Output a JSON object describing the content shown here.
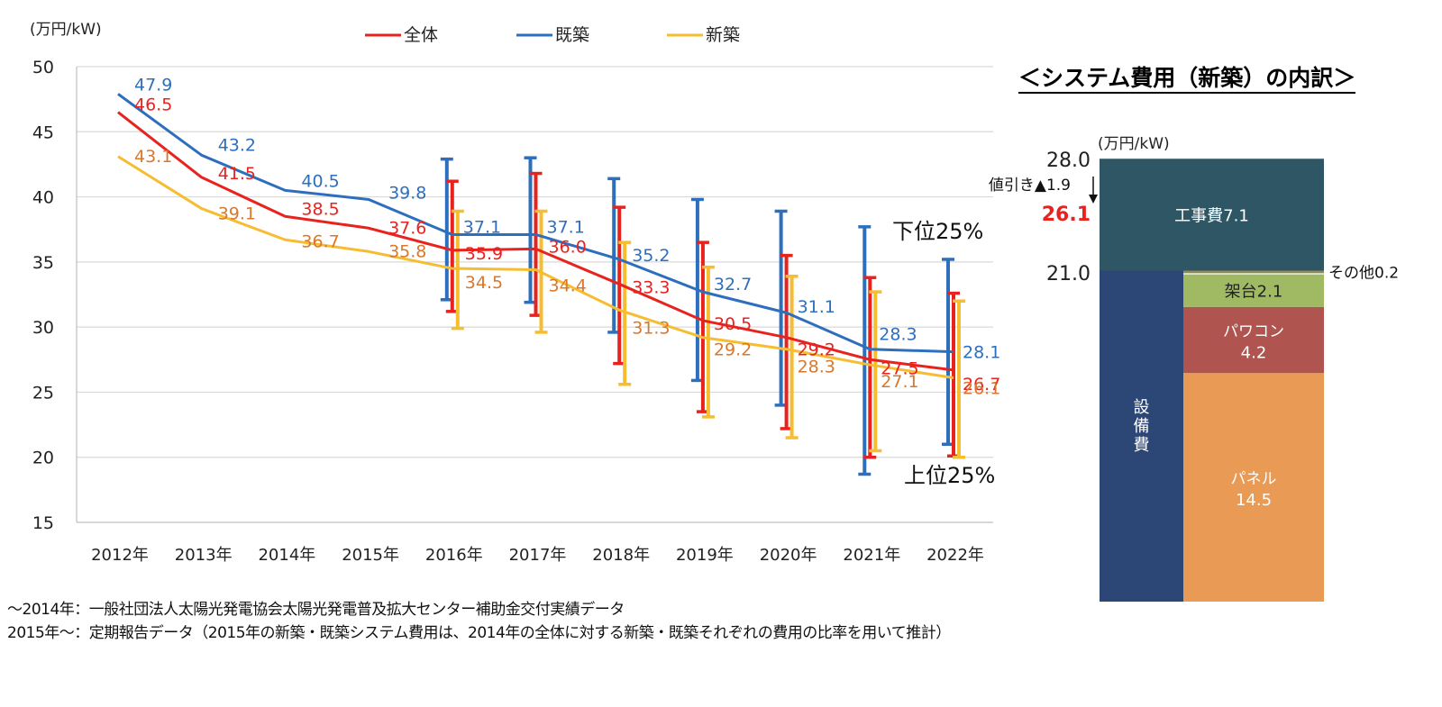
{
  "chart_data": [
    {
      "type": "line",
      "title": "",
      "ylabel": "(万円/kW)",
      "xlabel": "",
      "ylim": [
        15,
        50
      ],
      "yticks": [
        15,
        20,
        25,
        30,
        35,
        40,
        45,
        50
      ],
      "grid": true,
      "legend_position": "top",
      "categories": [
        "2012年",
        "2013年",
        "2014年",
        "2015年",
        "2016年",
        "2017年",
        "2018年",
        "2019年",
        "2020年",
        "2021年",
        "2022年"
      ],
      "series": [
        {
          "name": "全体",
          "color": "#e8231f",
          "label_color": "#e8231f",
          "values": [
            46.5,
            41.5,
            38.5,
            37.6,
            35.9,
            36.0,
            33.3,
            30.5,
            29.2,
            27.5,
            26.7
          ],
          "labels": [
            "46.5",
            "41.5",
            "38.5",
            "37.6",
            "35.9",
            "36.0",
            "33.3",
            "30.5",
            "29.2",
            "27.5",
            "26.7"
          ],
          "error_bars": [
            null,
            null,
            null,
            null,
            [
              31.2,
              41.2
            ],
            [
              30.9,
              41.8
            ],
            [
              27.2,
              39.2
            ],
            [
              23.5,
              36.5
            ],
            [
              22.2,
              35.5
            ],
            [
              20.0,
              33.8
            ],
            [
              20.1,
              32.6
            ]
          ]
        },
        {
          "name": "既築",
          "color": "#2e6fbd",
          "label_color": "#2e6fbd",
          "values": [
            47.9,
            43.2,
            40.5,
            39.8,
            37.1,
            37.1,
            35.2,
            32.7,
            31.1,
            28.3,
            28.1
          ],
          "labels": [
            "47.9",
            "43.2",
            "40.5",
            "39.8",
            "37.1",
            "37.1",
            "35.2",
            "32.7",
            "31.1",
            "28.3",
            "28.1"
          ],
          "error_bars": [
            null,
            null,
            null,
            null,
            [
              32.1,
              42.9
            ],
            [
              31.9,
              43.0
            ],
            [
              29.6,
              41.4
            ],
            [
              25.9,
              39.8
            ],
            [
              24.0,
              38.9
            ],
            [
              18.7,
              37.7
            ],
            [
              21.0,
              35.2
            ]
          ]
        },
        {
          "name": "新築",
          "color": "#f6bd30",
          "label_color": "#d9782d",
          "values": [
            43.1,
            39.1,
            36.7,
            35.8,
            34.5,
            34.4,
            31.3,
            29.2,
            28.3,
            27.1,
            26.1
          ],
          "labels": [
            "43.1",
            "39.1",
            "36.7",
            "35.8",
            "34.5",
            "34.4",
            "31.3",
            "29.2",
            "28.3",
            "27.1",
            "26.1"
          ],
          "error_bars": [
            null,
            null,
            null,
            null,
            [
              29.9,
              38.9
            ],
            [
              29.6,
              38.9
            ],
            [
              25.6,
              36.5
            ],
            [
              23.1,
              34.6
            ],
            [
              21.5,
              33.9
            ],
            [
              20.5,
              32.7
            ],
            [
              20.0,
              32.0
            ]
          ]
        }
      ],
      "annotations": {
        "lower_25": "下位25%",
        "upper_25": "上位25%"
      }
    },
    {
      "type": "bar",
      "stacked": true,
      "title": "＜システム費用（新築）の内訳＞",
      "ylabel": "(万円/kW)",
      "total_label": "28.0",
      "equipment_level_label": "21.0",
      "discount_label": "値引き▲1.9",
      "net_label": "26.1",
      "net_label_color": "#e8231f",
      "total": 28.0,
      "equipment_total": 21.0,
      "discount": 1.9,
      "net": 26.1,
      "equipment_group_label": "設備費",
      "equipment_group_color": "#2c4776",
      "segments": [
        {
          "name": "パネル",
          "value": 14.5,
          "label_line1": "パネル",
          "label_line2": "14.5",
          "color": "#e99b55",
          "text_color": "#ffffff"
        },
        {
          "name": "パワコン",
          "value": 4.2,
          "label_line1": "パワコン",
          "label_line2": "4.2",
          "color": "#b0544f",
          "text_color": "#ffffff"
        },
        {
          "name": "架台",
          "value": 2.1,
          "label_line1": "架台2.1",
          "label_line2": "",
          "color": "#9fba63",
          "text_color": "#222222"
        },
        {
          "name": "その他",
          "value": 0.2,
          "label_line1": "その他0.2",
          "label_line2": "",
          "color": "#8f8a5a",
          "text_color": "#111111"
        },
        {
          "name": "工事費",
          "value": 7.1,
          "label_line1": "工事費7.1",
          "label_line2": "",
          "color": "#2f5664",
          "text_color": "#ffffff"
        }
      ]
    }
  ],
  "legend": [
    {
      "label": "全体",
      "color": "#e8231f"
    },
    {
      "label": "既築",
      "color": "#2e6fbd"
    },
    {
      "label": "新築",
      "color": "#f6bd30"
    }
  ],
  "notes": [
    "～2014年：一般社団法人太陽光発電協会太陽光発電普及拡大センター補助金交付実績データ",
    "2015年～：定期報告データ（2015年の新築・既築システム費用は、2014年の全体に対する新築・既築それぞれの費用の比率を用いて推計）"
  ]
}
